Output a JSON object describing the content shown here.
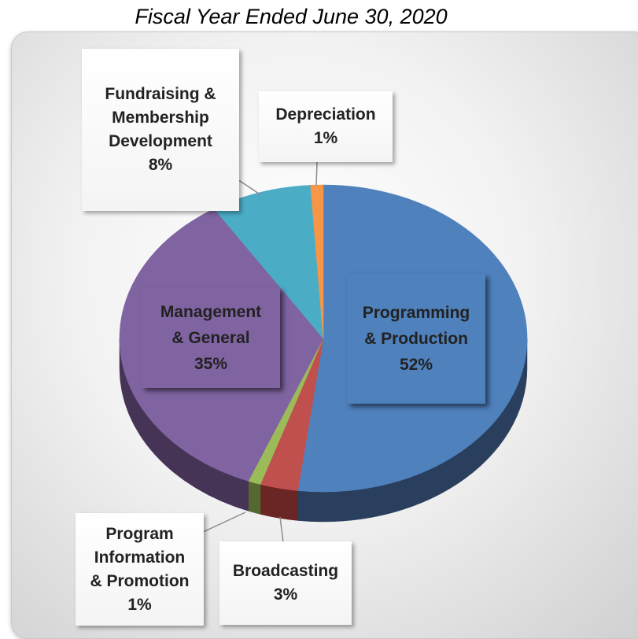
{
  "title": "Fiscal Year Ended June 30, 2020",
  "chart_data": {
    "type": "pie",
    "title": "Fiscal Year Ended June 30, 2020",
    "slices": [
      {
        "label_lines": [
          "Programming",
          "& Production"
        ],
        "pct_text": "52%",
        "value": 52,
        "color": "#4f81bd",
        "side_color": "#2a3f5e"
      },
      {
        "label_lines": [
          "Broadcasting"
        ],
        "pct_text": "3%",
        "value": 3,
        "color": "#c0504d",
        "side_color": "#6a2625"
      },
      {
        "label_lines": [
          "Program",
          "Information",
          "& Promotion"
        ],
        "pct_text": "1%",
        "value": 1,
        "color": "#9bbb59",
        "side_color": "#55682f"
      },
      {
        "label_lines": [
          "Management",
          "& General"
        ],
        "pct_text": "35%",
        "value": 35,
        "color": "#8064a2",
        "side_color": "#463457"
      },
      {
        "label_lines": [
          "Fundraising &",
          "Membership",
          "Development"
        ],
        "pct_text": "8%",
        "value": 8,
        "color": "#4bacc6",
        "side_color": "#285f6e"
      },
      {
        "label_lines": [
          "Depreciation"
        ],
        "pct_text": "1%",
        "value": 1,
        "color": "#f79646",
        "side_color": "#8a5224"
      }
    ]
  }
}
